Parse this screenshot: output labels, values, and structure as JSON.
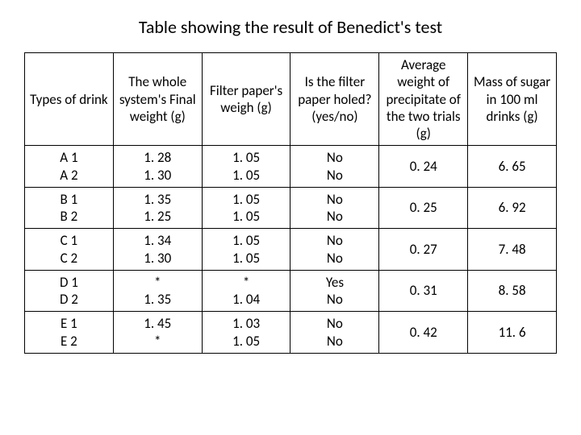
{
  "title": "Table showing the result of Benedict's test",
  "table": {
    "type": "table",
    "background_color": "#ffffff",
    "border_color": "#000000",
    "text_color": "#000000",
    "header_fontsize": 17,
    "cell_fontsize": 17,
    "columns": [
      "Types of drink",
      "The whole system's Final weight (g)",
      "Filter paper's weigh (g)",
      "Is the filter paper holed? (yes/no)",
      "Average weight of precipitate of the two trials (g)",
      "Mass of sugar in 100 ml drinks (g)"
    ],
    "column_widths_pct": [
      15,
      18,
      15,
      17,
      18,
      17
    ],
    "rows": [
      {
        "drink": "A 1\nA 2",
        "final_weight": "1. 28\n1. 30",
        "filter_weight": "1. 05\n1. 05",
        "holed": "No\nNo",
        "avg_precip": "0. 24",
        "mass_sugar": "6. 65"
      },
      {
        "drink": "B 1\nB 2",
        "final_weight": "1. 35\n1. 25",
        "filter_weight": "1. 05\n1. 05",
        "holed": "No\nNo",
        "avg_precip": "0. 25",
        "mass_sugar": "6. 92"
      },
      {
        "drink": "C 1\nC 2",
        "final_weight": "1. 34\n1. 30",
        "filter_weight": "1. 05\n1. 05",
        "holed": "No\nNo",
        "avg_precip": "0. 27",
        "mass_sugar": "7. 48"
      },
      {
        "drink": "D 1\nD 2",
        "final_weight": "*\n1. 35",
        "filter_weight": "*\n1. 04",
        "holed": "Yes\nNo",
        "avg_precip": "0. 31",
        "mass_sugar": "8. 58"
      },
      {
        "drink": "E 1\nE 2",
        "final_weight": "1. 45\n*",
        "filter_weight": "1. 03\n1. 05",
        "holed": "No\nNo",
        "avg_precip": "0. 42",
        "mass_sugar": "11. 6"
      }
    ]
  }
}
